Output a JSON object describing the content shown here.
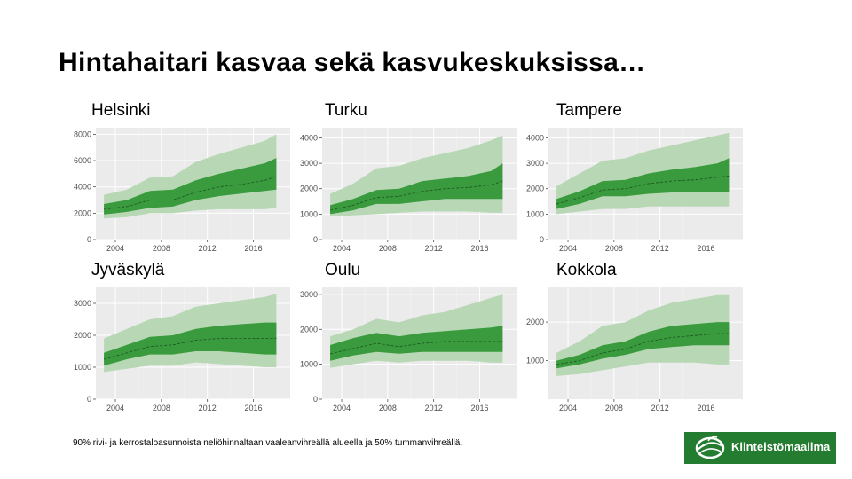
{
  "title": "Hintahaitari kasvaa sekä kasvukeskuksissa…",
  "footnote": "90% rivi- ja kerrostaloasunnoista neliöhinnaltaan vaaleanvihreällä alueella ja 50% tummanvihreällä.",
  "logo_text": "Kiinteistömaailma",
  "colors": {
    "panel_bg": "#ebebeb",
    "light_band": "#b8d8b5",
    "dark_band": "#3a9a3e",
    "median": "#1f5a22",
    "logo_bg": "#237c2f"
  },
  "chart_data": [
    {
      "type": "area",
      "title": "Helsinki",
      "ylim": [
        0,
        8500
      ],
      "yticks": [
        0,
        2000,
        4000,
        6000,
        8000
      ],
      "xlim": [
        2002.3,
        2019.2
      ],
      "xticks": [
        2004,
        2008,
        2012,
        2016
      ],
      "x": [
        2003,
        2005,
        2007,
        2009,
        2011,
        2013,
        2015,
        2017,
        2018
      ],
      "series": [
        {
          "values": [
            1600,
            1700,
            2000,
            2000,
            2200,
            2300,
            2300,
            2300,
            2400
          ]
        },
        {
          "values": [
            1900,
            2100,
            2400,
            2500,
            3000,
            3300,
            3500,
            3700,
            3800
          ]
        },
        {
          "values": [
            2300,
            2500,
            3000,
            3000,
            3600,
            4000,
            4200,
            4500,
            4800
          ]
        },
        {
          "values": [
            2700,
            3000,
            3700,
            3800,
            4500,
            5000,
            5400,
            5800,
            6200
          ]
        },
        {
          "values": [
            3400,
            3800,
            4700,
            4800,
            5900,
            6500,
            7000,
            7500,
            8000
          ]
        }
      ]
    },
    {
      "type": "area",
      "title": "Turku",
      "ylim": [
        0,
        4400
      ],
      "yticks": [
        0,
        1000,
        2000,
        3000,
        4000
      ],
      "xlim": [
        2002.3,
        2019.2
      ],
      "xticks": [
        2004,
        2008,
        2012,
        2016
      ],
      "x": [
        2003,
        2005,
        2007,
        2009,
        2011,
        2013,
        2015,
        2017,
        2018
      ],
      "series": [
        {
          "values": [
            900,
            950,
            1000,
            1050,
            1100,
            1100,
            1100,
            1050,
            1050
          ]
        },
        {
          "values": [
            1000,
            1150,
            1400,
            1400,
            1500,
            1600,
            1600,
            1600,
            1600
          ]
        },
        {
          "values": [
            1150,
            1350,
            1650,
            1700,
            1900,
            2000,
            2050,
            2150,
            2300
          ]
        },
        {
          "values": [
            1350,
            1600,
            1950,
            2000,
            2300,
            2400,
            2500,
            2700,
            3000
          ]
        },
        {
          "values": [
            1800,
            2200,
            2800,
            2900,
            3200,
            3400,
            3600,
            3900,
            4100
          ]
        }
      ]
    },
    {
      "type": "area",
      "title": "Tampere",
      "ylim": [
        0,
        4400
      ],
      "yticks": [
        0,
        1000,
        2000,
        3000,
        4000
      ],
      "xlim": [
        2002.3,
        2019.2
      ],
      "xticks": [
        2004,
        2008,
        2012,
        2016
      ],
      "x": [
        2003,
        2005,
        2007,
        2009,
        2011,
        2013,
        2015,
        2017,
        2018
      ],
      "series": [
        {
          "values": [
            1000,
            1100,
            1200,
            1200,
            1300,
            1300,
            1300,
            1300,
            1300
          ]
        },
        {
          "values": [
            1200,
            1400,
            1700,
            1700,
            1800,
            1850,
            1850,
            1850,
            1850
          ]
        },
        {
          "values": [
            1400,
            1650,
            1950,
            2000,
            2200,
            2300,
            2350,
            2450,
            2500
          ]
        },
        {
          "values": [
            1600,
            1900,
            2300,
            2350,
            2600,
            2750,
            2850,
            3000,
            3200
          ]
        },
        {
          "values": [
            2100,
            2600,
            3100,
            3200,
            3500,
            3700,
            3900,
            4100,
            4200
          ]
        }
      ]
    },
    {
      "type": "area",
      "title": "Jyväskylä",
      "ylim": [
        0,
        3500
      ],
      "yticks": [
        0,
        1000,
        2000,
        3000
      ],
      "xlim": [
        2002.3,
        2019.2
      ],
      "xticks": [
        2004,
        2008,
        2012,
        2016
      ],
      "x": [
        2003,
        2005,
        2007,
        2009,
        2011,
        2013,
        2015,
        2017,
        2018
      ],
      "series": [
        {
          "values": [
            850,
            950,
            1050,
            1050,
            1150,
            1100,
            1050,
            1000,
            1000
          ]
        },
        {
          "values": [
            1050,
            1250,
            1400,
            1400,
            1500,
            1500,
            1450,
            1400,
            1400
          ]
        },
        {
          "values": [
            1250,
            1450,
            1650,
            1700,
            1850,
            1900,
            1900,
            1900,
            1900
          ]
        },
        {
          "values": [
            1450,
            1700,
            1950,
            2000,
            2200,
            2300,
            2350,
            2400,
            2400
          ]
        },
        {
          "values": [
            1900,
            2200,
            2500,
            2600,
            2900,
            3000,
            3100,
            3200,
            3300
          ]
        }
      ]
    },
    {
      "type": "area",
      "title": "Oulu",
      "ylim": [
        0,
        3200
      ],
      "yticks": [
        0,
        1000,
        2000,
        3000
      ],
      "xlim": [
        2002.3,
        2019.2
      ],
      "xticks": [
        2004,
        2008,
        2012,
        2016
      ],
      "x": [
        2003,
        2005,
        2007,
        2009,
        2011,
        2013,
        2015,
        2017,
        2018
      ],
      "series": [
        {
          "values": [
            900,
            1000,
            1100,
            1050,
            1100,
            1100,
            1100,
            1050,
            1050
          ]
        },
        {
          "values": [
            1100,
            1250,
            1350,
            1300,
            1350,
            1350,
            1350,
            1350,
            1350
          ]
        },
        {
          "values": [
            1300,
            1450,
            1600,
            1500,
            1600,
            1650,
            1650,
            1650,
            1650
          ]
        },
        {
          "values": [
            1550,
            1750,
            1900,
            1800,
            1900,
            1950,
            2000,
            2050,
            2100
          ]
        },
        {
          "values": [
            1800,
            2000,
            2300,
            2200,
            2400,
            2500,
            2700,
            2900,
            3000
          ]
        }
      ]
    },
    {
      "type": "area",
      "title": "Kokkola",
      "ylim": [
        0,
        2900
      ],
      "yticks": [
        1000,
        2000
      ],
      "xlim": [
        2002.3,
        2019.2
      ],
      "xticks": [
        2004,
        2008,
        2012,
        2016
      ],
      "x": [
        2003,
        2005,
        2007,
        2009,
        2011,
        2013,
        2015,
        2017,
        2018
      ],
      "series": [
        {
          "values": [
            600,
            650,
            750,
            850,
            950,
            950,
            950,
            900,
            900
          ]
        },
        {
          "values": [
            800,
            900,
            1050,
            1150,
            1300,
            1350,
            1400,
            1400,
            1400
          ]
        },
        {
          "values": [
            900,
            1000,
            1200,
            1300,
            1500,
            1600,
            1650,
            1700,
            1700
          ]
        },
        {
          "values": [
            1000,
            1150,
            1400,
            1500,
            1750,
            1900,
            1950,
            2000,
            2000
          ]
        },
        {
          "values": [
            1200,
            1500,
            1900,
            2000,
            2300,
            2500,
            2600,
            2700,
            2700
          ]
        }
      ]
    }
  ]
}
